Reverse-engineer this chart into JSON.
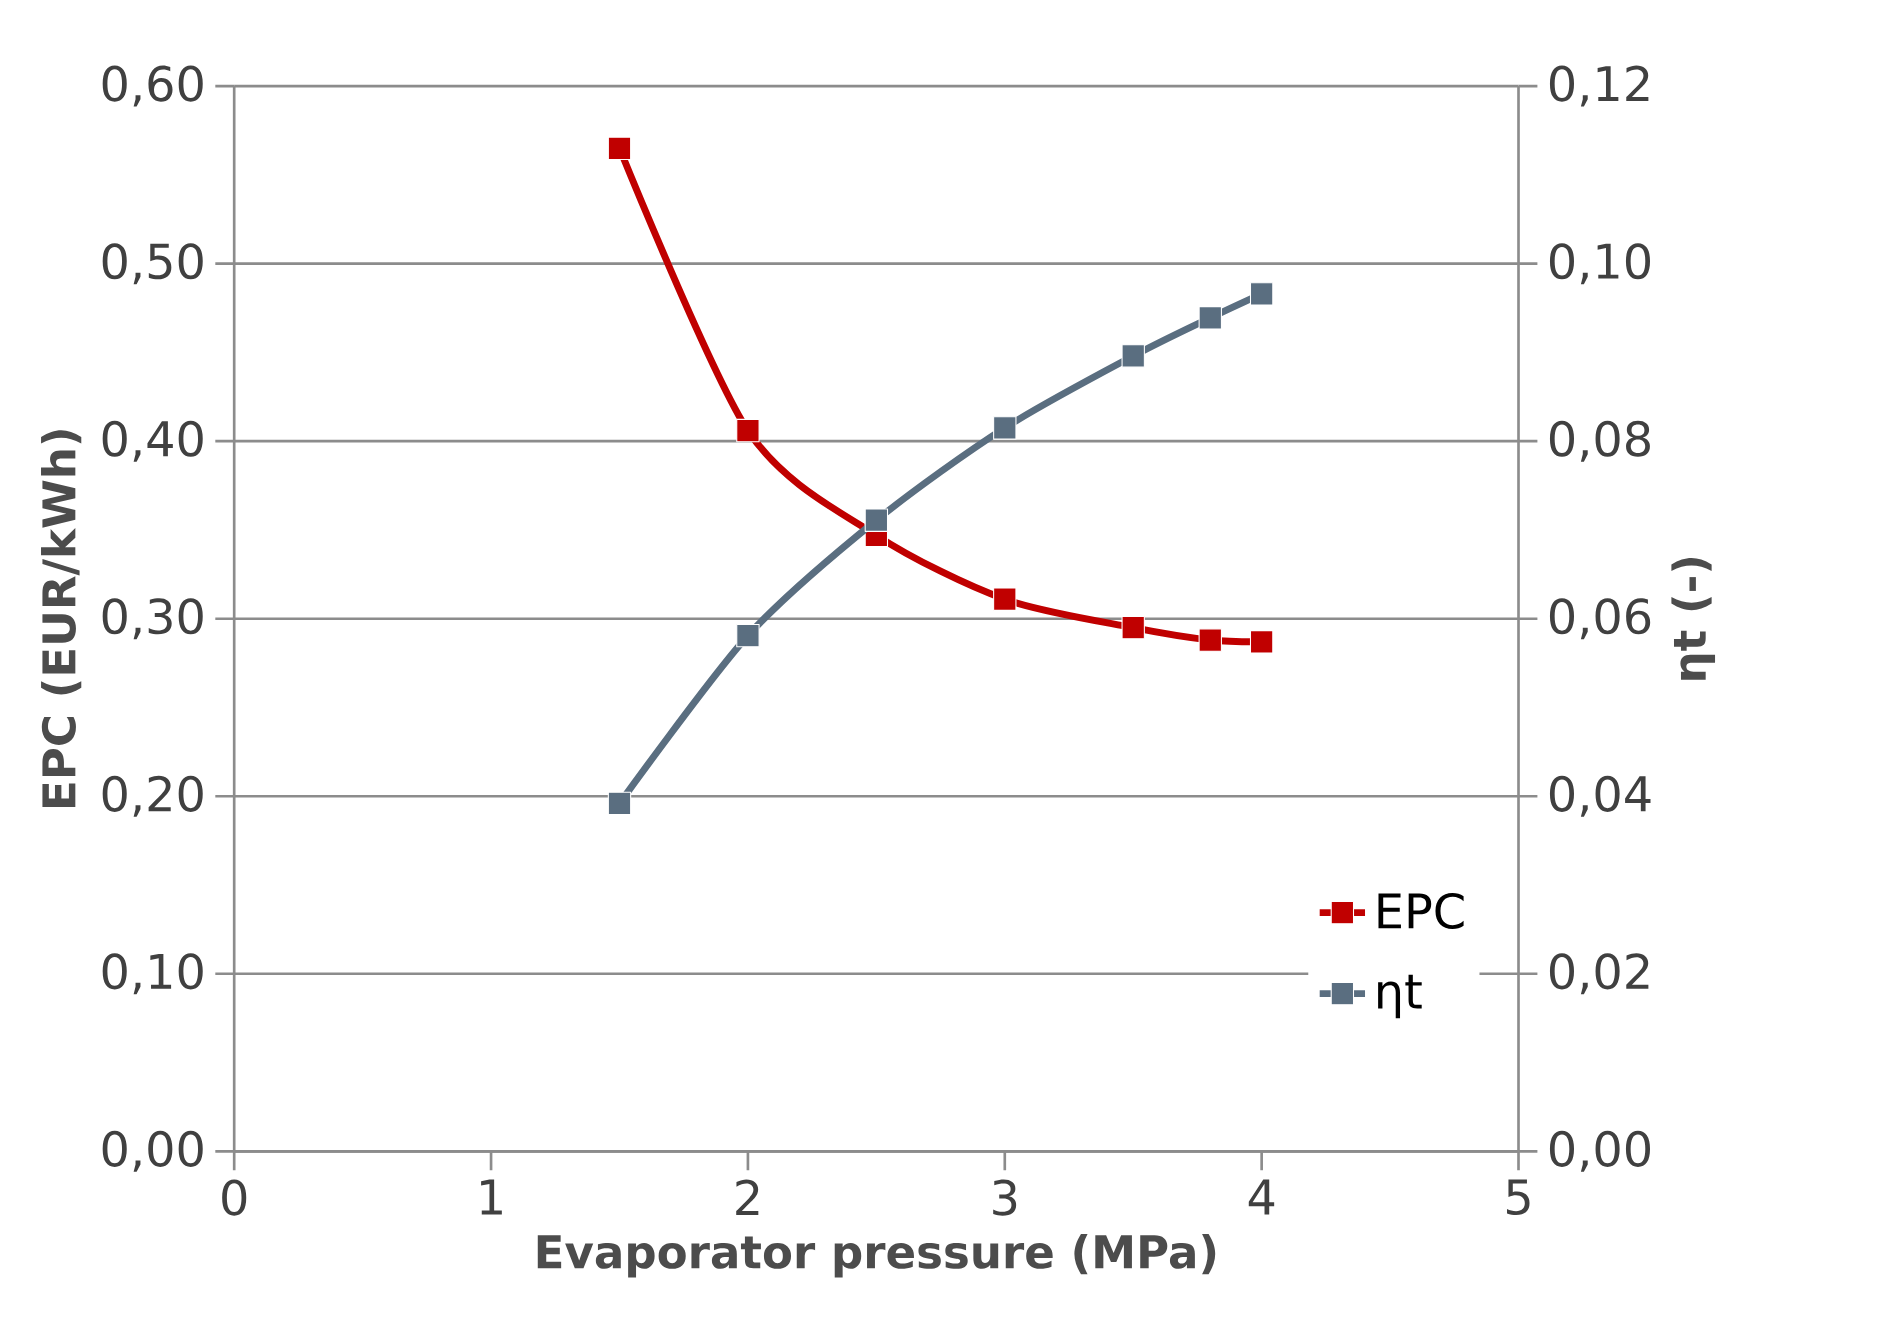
{
  "chart_data": {
    "type": "line",
    "xlabel": "Evaporator pressure (MPa)",
    "ylabel": "EPC (EUR/kWh)",
    "y2label": "ηt (-)",
    "x": [
      1.5,
      2,
      2.5,
      3,
      3.5,
      3.8,
      4
    ],
    "series": [
      {
        "name": "EPC",
        "color": "#c00000",
        "values": [
          0.565,
          0.406,
          0.347,
          0.311,
          0.295,
          0.288,
          0.287
        ]
      },
      {
        "name": "ηt",
        "color": "#5a6e80",
        "axis": "y2",
        "values": [
          0.0392,
          0.0581,
          0.0711,
          0.0815,
          0.0896,
          0.0939,
          0.0966
        ]
      }
    ],
    "xlim": [
      0,
      5
    ],
    "xticks": [
      0,
      1,
      2,
      3,
      4,
      5
    ],
    "ylim": [
      0,
      0.6
    ],
    "yticks": [
      {
        "value": 0,
        "label": "0,00"
      },
      {
        "value": 0.1,
        "label": "0,10"
      },
      {
        "value": 0.2,
        "label": "0,20"
      },
      {
        "value": 0.3,
        "label": "0,30"
      },
      {
        "value": 0.4,
        "label": "0,40"
      },
      {
        "value": 0.5,
        "label": "0,50"
      },
      {
        "value": 0.6,
        "label": "0,60"
      }
    ],
    "y2lim": [
      0,
      0.12
    ],
    "y2ticks": [
      {
        "value": 0,
        "label": "0,00"
      },
      {
        "value": 0.02,
        "label": "0,02"
      },
      {
        "value": 0.04,
        "label": "0,04"
      },
      {
        "value": 0.06,
        "label": "0,06"
      },
      {
        "value": 0.08,
        "label": "0,08"
      },
      {
        "value": 0.1,
        "label": "0,10"
      },
      {
        "value": 0.12,
        "label": "0,12"
      }
    ],
    "grid": "y",
    "legend": "bottom right",
    "marker": "square",
    "line_style": "solid"
  }
}
